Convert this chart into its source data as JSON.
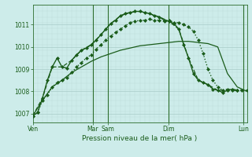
{
  "background_color": "#cdecea",
  "grid_color_major": "#a8ccc8",
  "grid_color_minor": "#b8d8d4",
  "line_color": "#1a5c1a",
  "title": "Pression niveau de la mer( hPa )",
  "ylabel_ticks": [
    1007,
    1008,
    1009,
    1010,
    1011
  ],
  "xlim": [
    0,
    264
  ],
  "ylim": [
    1006.6,
    1011.9
  ],
  "vlines_x": [
    74,
    93,
    167,
    260
  ],
  "vline_color_dark": "#2d6e2d",
  "vline_color_light": "#8ab08a",
  "series_smooth": {
    "x": [
      0,
      12,
      24,
      36,
      48,
      60,
      72,
      84,
      96,
      108,
      120,
      132,
      144,
      156,
      168,
      180,
      192,
      204,
      216,
      228,
      240,
      252,
      264
    ],
    "y": [
      1006.9,
      1007.6,
      1008.2,
      1008.5,
      1008.85,
      1009.1,
      1009.35,
      1009.55,
      1009.7,
      1009.85,
      1009.95,
      1010.05,
      1010.1,
      1010.15,
      1010.2,
      1010.25,
      1010.25,
      1010.2,
      1010.15,
      1010.0,
      1008.8,
      1008.2,
      1008.0
    ],
    "style": "-",
    "linewidth": 0.9,
    "marker": null
  },
  "series_main": {
    "x": [
      0,
      6,
      12,
      18,
      24,
      30,
      36,
      42,
      48,
      54,
      60,
      66,
      72,
      78,
      84,
      90,
      96,
      102,
      108,
      114,
      120,
      126,
      132,
      138,
      144,
      150,
      156,
      162,
      168,
      174,
      180,
      186,
      192,
      198,
      204,
      210,
      216,
      222,
      228,
      234,
      240,
      246,
      252
    ],
    "y": [
      1006.9,
      1007.05,
      1007.7,
      1008.5,
      1009.1,
      1009.5,
      1009.1,
      1009.05,
      1009.4,
      1009.65,
      1009.85,
      1009.95,
      1010.1,
      1010.3,
      1010.55,
      1010.8,
      1011.05,
      1011.2,
      1011.4,
      1011.5,
      1011.55,
      1011.6,
      1011.6,
      1011.55,
      1011.5,
      1011.4,
      1011.35,
      1011.2,
      1011.15,
      1011.05,
      1010.8,
      1010.1,
      1009.5,
      1008.8,
      1008.5,
      1008.4,
      1008.3,
      1008.1,
      1008.05,
      1007.95,
      1008.05,
      1008.1,
      1008.05
    ],
    "style": "-",
    "linewidth": 1.0,
    "marker": "D",
    "markersize": 2.0
  },
  "series_dashed": {
    "x": [
      0,
      12,
      24,
      36,
      48,
      60,
      72,
      84,
      96,
      108,
      120,
      132,
      144,
      156,
      168,
      180,
      192,
      204,
      216,
      228,
      240,
      252
    ],
    "y": [
      1006.9,
      1007.7,
      1009.1,
      1009.1,
      1009.4,
      1009.85,
      1010.1,
      1010.55,
      1011.05,
      1011.4,
      1011.55,
      1011.6,
      1011.5,
      1011.35,
      1011.15,
      1010.8,
      1009.5,
      1008.5,
      1008.3,
      1008.05,
      1008.05,
      1008.05
    ],
    "style": "--",
    "linewidth": 0.9,
    "marker": null
  },
  "series_dotted": {
    "x": [
      0,
      6,
      12,
      18,
      24,
      30,
      36,
      42,
      48,
      54,
      60,
      66,
      72,
      78,
      84,
      90,
      96,
      102,
      108,
      114,
      120,
      126,
      132,
      138,
      144,
      150,
      156,
      162,
      168,
      174,
      180,
      186,
      192,
      198,
      204,
      210,
      216,
      222,
      228,
      234,
      240,
      246,
      252,
      258,
      264
    ],
    "y": [
      1006.9,
      1007.05,
      1007.6,
      1007.85,
      1008.2,
      1008.4,
      1008.5,
      1008.6,
      1008.85,
      1009.1,
      1009.3,
      1009.5,
      1009.65,
      1009.9,
      1010.1,
      1010.3,
      1010.5,
      1010.65,
      1010.8,
      1010.95,
      1011.1,
      1011.15,
      1011.2,
      1011.2,
      1011.25,
      1011.2,
      1011.2,
      1011.15,
      1011.2,
      1011.1,
      1011.1,
      1011.0,
      1010.9,
      1010.7,
      1010.3,
      1009.7,
      1009.0,
      1008.5,
      1008.2,
      1008.05,
      1008.1,
      1008.05,
      1008.05,
      1008.05,
      1008.05
    ],
    "style": ":",
    "linewidth": 1.0,
    "marker": "D",
    "markersize": 2.0
  },
  "xtick_positions": [
    0,
    74,
    93,
    167,
    260
  ],
  "xtick_labels": [
    "Ven",
    "Mar",
    "Sam",
    "Dim",
    "Lun"
  ],
  "figsize": [
    3.2,
    2.0
  ],
  "dpi": 100
}
